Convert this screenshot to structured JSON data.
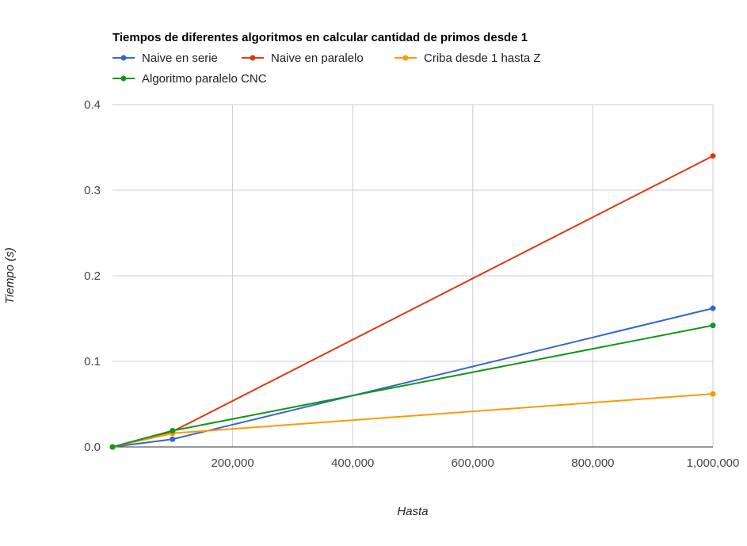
{
  "chart_data": {
    "type": "line",
    "title": "Tiempos de diferentes algoritmos en calcular cantidad de primos desde 1",
    "xlabel": "Hasta",
    "ylabel": "Tiempo (s)",
    "xlim": [
      0,
      1000000
    ],
    "ylim": [
      0,
      0.4
    ],
    "x_ticks": [
      200000,
      400000,
      600000,
      800000,
      1000000
    ],
    "x_tick_labels": [
      "200,000",
      "400,000",
      "600,000",
      "800,000",
      "1,000,000"
    ],
    "y_ticks": [
      0,
      0.1,
      0.2,
      0.3,
      0.4
    ],
    "y_tick_labels": [
      "0.0",
      "0.1",
      "0.2",
      "0.3",
      "0.4"
    ],
    "grid": true,
    "legend_position": "top",
    "x": [
      1,
      100000,
      1000000
    ],
    "series": [
      {
        "name": "Naive en serie",
        "color": "#3366cc",
        "values": [
          0,
          0.009,
          0.162
        ]
      },
      {
        "name": "Naive en paralelo",
        "color": "#dc3912",
        "values": [
          0,
          0.018,
          0.34
        ]
      },
      {
        "name": "Criba desde 1 hasta Z",
        "color": "#ff9900",
        "values": [
          0,
          0.016,
          0.062
        ]
      },
      {
        "name": "Algoritmo paralelo CNC",
        "color": "#109618",
        "values": [
          0,
          0.019,
          0.142
        ]
      }
    ]
  }
}
